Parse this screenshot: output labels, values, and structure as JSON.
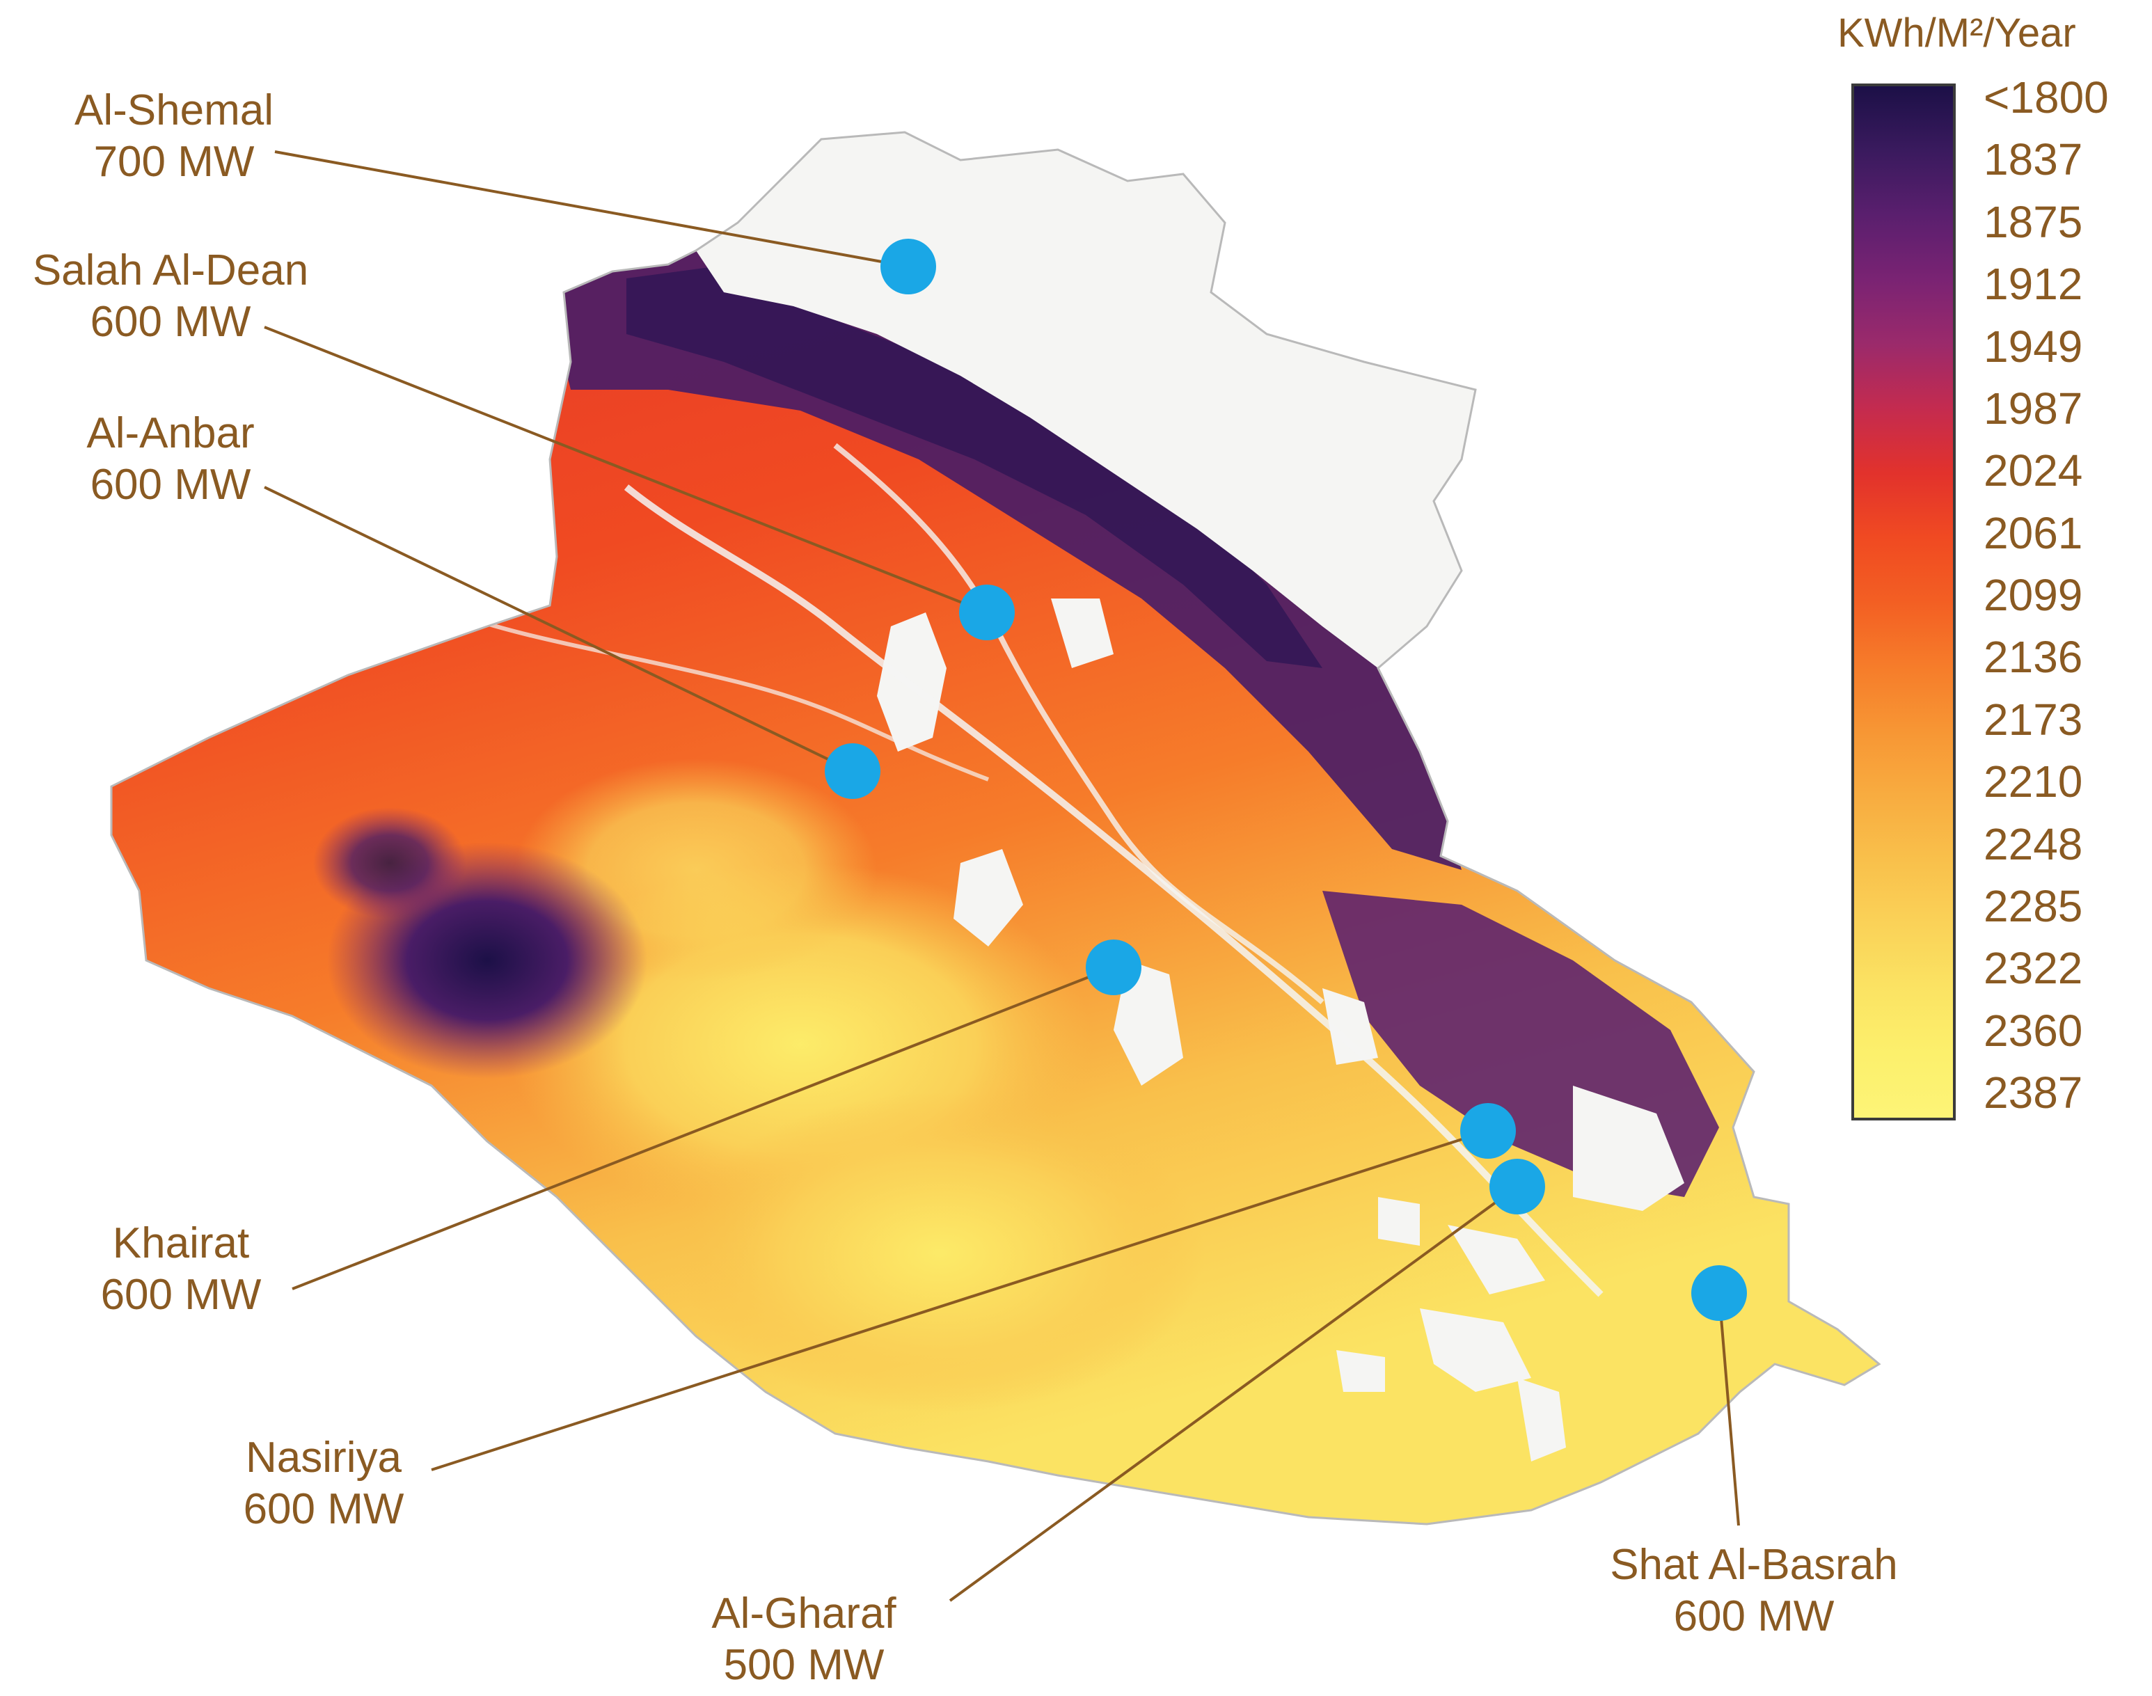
{
  "legend": {
    "unit": "KWh/M²/Year",
    "ticks": [
      "<1800",
      "1837",
      "1875",
      "1912",
      "1949",
      "1987",
      "2024",
      "2061",
      "2099",
      "2136",
      "2173",
      "2210",
      "2248",
      "2285",
      "2322",
      "2360",
      "2387"
    ],
    "colors": [
      "#1c1047",
      "#3a1a5e",
      "#5a1f6e",
      "#7a2373",
      "#9b2a6b",
      "#c42b4f",
      "#e2322c",
      "#f04a22",
      "#f35f23",
      "#f67c2a",
      "#f79634",
      "#f8ac40",
      "#f9c04b",
      "#fad258",
      "#fbe363",
      "#fcf06c",
      "#fdf477"
    ]
  },
  "plants": [
    {
      "name": "Al-Shemal",
      "capacity": "700 MW"
    },
    {
      "name": "Salah Al-Dean",
      "capacity": "600 MW"
    },
    {
      "name": "Al-Anbar",
      "capacity": "600 MW"
    },
    {
      "name": "Khairat",
      "capacity": "600 MW"
    },
    {
      "name": "Nasiriya",
      "capacity": "600 MW"
    },
    {
      "name": "Al-Gharaf",
      "capacity": "500 MW"
    },
    {
      "name": "Shat Al-Basrah",
      "capacity": "600 MW"
    }
  ],
  "colors": {
    "marker": "#1aa7e6",
    "leader_line": "#8a5a22",
    "label_text": "#8a5a22",
    "no_data": "#f5f5f3"
  }
}
